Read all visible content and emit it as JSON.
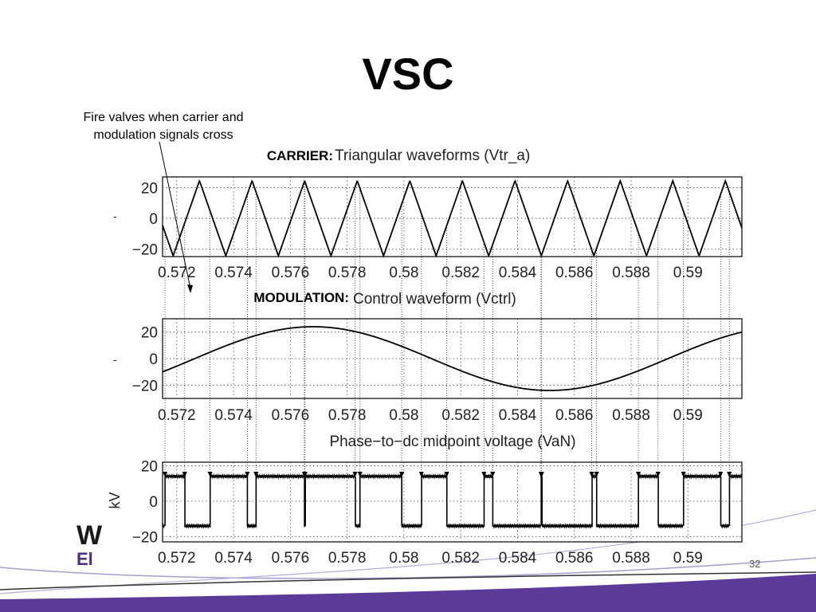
{
  "slide": {
    "title": "VSC",
    "annotation_line1": "Fire valves when carrier and",
    "annotation_line2": "modulation signals cross",
    "slide_number": "32",
    "logo_line1": "W",
    "logo_line2": "El",
    "colors": {
      "accent": "#5b3a9a",
      "text": "#000000"
    }
  },
  "chart_data": [
    {
      "type": "line",
      "title_prefix": "CARRIER:",
      "title": "Triangular waveforms (Vtr_a)",
      "xlabel": "",
      "ylabel": "",
      "xlim": [
        0.5715,
        0.5919
      ],
      "ylim": [
        -25,
        27
      ],
      "x_ticks": [
        0.572,
        0.574,
        0.576,
        0.578,
        0.58,
        0.582,
        0.584,
        0.586,
        0.588,
        0.59
      ],
      "x_tick_labels": [
        "0.572",
        "0.574",
        "0.576",
        "0.578",
        "0.58",
        "0.582",
        "0.584",
        "0.586",
        "0.588",
        "0.59"
      ],
      "y_ticks": [
        20,
        0,
        -20
      ],
      "y_tick_labels": [
        "20",
        "0",
        "−20"
      ],
      "grid": true,
      "series": [
        {
          "waveform": "triangular",
          "amplitude": 24.5,
          "frequency_hz": 540,
          "peak_x": 0.5728
        }
      ]
    },
    {
      "type": "line",
      "title_prefix": "MODULATION:",
      "title": "Control waveform (Vctrl)",
      "xlabel": "",
      "ylabel": "",
      "xlim": [
        0.5715,
        0.5919
      ],
      "ylim": [
        -30,
        30
      ],
      "x_ticks": [
        0.572,
        0.574,
        0.576,
        0.578,
        0.58,
        0.582,
        0.584,
        0.586,
        0.588,
        0.59
      ],
      "x_tick_labels": [
        "0.572",
        "0.574",
        "0.576",
        "0.578",
        "0.58",
        "0.582",
        "0.584",
        "0.586",
        "0.588",
        "0.59"
      ],
      "y_ticks": [
        20,
        0,
        -20
      ],
      "y_tick_labels": [
        "20",
        "0",
        "−20"
      ],
      "grid": true,
      "series": [
        {
          "waveform": "sine",
          "amplitude": 24,
          "frequency_hz": 60,
          "peak_x": 0.5768
        }
      ]
    },
    {
      "type": "line",
      "title": "Phase−to−dc midpoint voltage (VaN)",
      "xlabel": "",
      "ylabel": "kV",
      "xlim": [
        0.5715,
        0.5919
      ],
      "ylim": [
        -23,
        22
      ],
      "x_ticks": [
        0.572,
        0.574,
        0.576,
        0.578,
        0.58,
        0.582,
        0.584,
        0.586,
        0.588,
        0.59
      ],
      "x_tick_labels": [
        "0.572",
        "0.574",
        "0.576",
        "0.578",
        "0.58",
        "0.582",
        "0.584",
        "0.586",
        "0.588",
        "0.59"
      ],
      "y_ticks": [
        20,
        0,
        -20
      ],
      "y_tick_labels": [
        "20",
        "0",
        "−20"
      ],
      "grid": true,
      "series": [
        {
          "waveform": "pwm",
          "high": 14,
          "low": -14,
          "derived_from": [
            "carrier",
            "modulation"
          ]
        }
      ]
    }
  ]
}
